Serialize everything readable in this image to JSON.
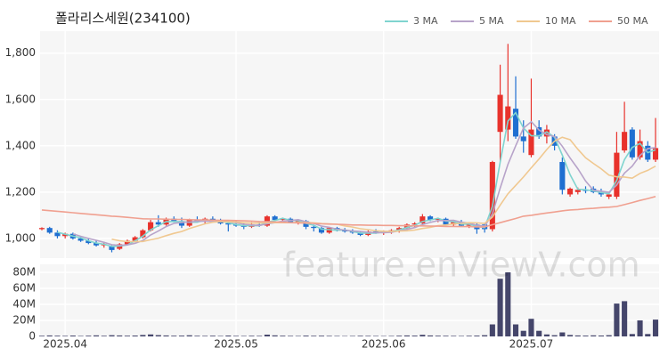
{
  "chart_data": {
    "type": "candlestick",
    "title": "폴라리스세원(234100)",
    "watermark": "feature.enViewV.com",
    "categories": [
      null,
      null,
      null,
      "2025.04",
      null,
      null,
      null,
      null,
      null,
      null,
      null,
      null,
      null,
      null,
      null,
      null,
      null,
      null,
      null,
      null,
      null,
      null,
      null,
      null,
      null,
      "2025.05",
      null,
      null,
      null,
      null,
      null,
      null,
      null,
      null,
      null,
      null,
      null,
      null,
      null,
      null,
      null,
      null,
      null,
      null,
      "2025.06",
      null,
      null,
      null,
      null,
      null,
      null,
      null,
      null,
      null,
      null,
      null,
      null,
      null,
      null,
      null,
      null,
      null,
      null,
      "2025.07",
      null,
      null,
      null,
      null,
      null,
      null,
      null,
      null,
      null,
      null,
      null,
      null,
      null,
      null,
      null,
      null
    ],
    "open": [
      1040,
      1045,
      1025,
      1010,
      1020,
      1000,
      990,
      980,
      970,
      965,
      955,
      975,
      990,
      1005,
      1035,
      1070,
      1060,
      1085,
      1075,
      1055,
      1080,
      1075,
      1085,
      1075,
      1065,
      1060,
      1055,
      1050,
      1060,
      1055,
      1095,
      1080,
      1085,
      1070,
      1075,
      1050,
      1045,
      1025,
      1045,
      1035,
      1030,
      1025,
      1015,
      1030,
      1025,
      1030,
      1035,
      1045,
      1060,
      1065,
      1095,
      1080,
      1085,
      1060,
      1070,
      1055,
      1060,
      1060,
      1040,
      1460,
      1470,
      1560,
      1440,
      1360,
      1480,
      1440,
      1440,
      1330,
      1190,
      1200,
      1210,
      1215,
      1200,
      1180,
      1180,
      1380,
      1470,
      1350,
      1400,
      1340
    ],
    "high": [
      1048,
      1050,
      1035,
      1025,
      1025,
      1010,
      1000,
      990,
      985,
      970,
      980,
      995,
      1010,
      1040,
      1080,
      1100,
      1090,
      1095,
      1090,
      1085,
      1095,
      1090,
      1095,
      1085,
      1070,
      1075,
      1065,
      1070,
      1070,
      1100,
      1100,
      1090,
      1090,
      1080,
      1080,
      1060,
      1050,
      1050,
      1050,
      1045,
      1040,
      1030,
      1035,
      1040,
      1035,
      1040,
      1050,
      1065,
      1070,
      1105,
      1100,
      1090,
      1090,
      1075,
      1080,
      1070,
      1065,
      1065,
      1335,
      1750,
      1840,
      1700,
      1510,
      1690,
      1510,
      1490,
      1450,
      1350,
      1220,
      1220,
      1225,
      1225,
      1215,
      1200,
      1460,
      1590,
      1480,
      1470,
      1420,
      1520
    ],
    "low": [
      1035,
      1020,
      1000,
      1000,
      995,
      985,
      975,
      965,
      960,
      940,
      950,
      970,
      985,
      1000,
      1030,
      1050,
      1055,
      1070,
      1045,
      1050,
      1070,
      1065,
      1070,
      1060,
      1030,
      1050,
      1040,
      1045,
      1050,
      1050,
      1075,
      1070,
      1065,
      1060,
      1040,
      1030,
      1020,
      1020,
      1030,
      1025,
      1020,
      1010,
      1010,
      1020,
      1015,
      1020,
      1025,
      1040,
      1045,
      1060,
      1075,
      1070,
      1055,
      1050,
      1050,
      1045,
      1020,
      1025,
      1030,
      1330,
      1420,
      1430,
      1370,
      1350,
      1430,
      1410,
      1380,
      1190,
      1180,
      1190,
      1195,
      1195,
      1180,
      1170,
      1170,
      1370,
      1340,
      1340,
      1330,
      1330
    ],
    "close": [
      1045,
      1025,
      1010,
      1020,
      1000,
      990,
      980,
      970,
      975,
      950,
      975,
      990,
      1005,
      1035,
      1070,
      1060,
      1085,
      1075,
      1055,
      1080,
      1075,
      1085,
      1075,
      1065,
      1060,
      1055,
      1050,
      1060,
      1055,
      1095,
      1080,
      1085,
      1070,
      1075,
      1050,
      1045,
      1025,
      1045,
      1035,
      1030,
      1025,
      1015,
      1030,
      1025,
      1030,
      1035,
      1045,
      1060,
      1065,
      1095,
      1080,
      1085,
      1060,
      1070,
      1055,
      1060,
      1040,
      1040,
      1330,
      1620,
      1570,
      1440,
      1420,
      1470,
      1440,
      1470,
      1400,
      1210,
      1215,
      1210,
      1205,
      1200,
      1190,
      1190,
      1370,
      1460,
      1350,
      1420,
      1340,
      1390
    ],
    "up_color": "#e8322c",
    "down_color": "#1f6fd1",
    "ylim": [
      915,
      1895
    ],
    "yticks": [
      {
        "value": 1000,
        "label": "1,000"
      },
      {
        "value": 1200,
        "label": "1,200"
      },
      {
        "value": 1400,
        "label": "1,400"
      },
      {
        "value": 1600,
        "label": "1,600"
      },
      {
        "value": 1800,
        "label": "1,800"
      }
    ],
    "grid": true,
    "legend": "top-right",
    "series": [
      {
        "name": "3 MA",
        "color": "#7fd4cf",
        "values": [
          null,
          null,
          1027,
          1018,
          1010,
          1003,
          990,
          980,
          975,
          965,
          967,
          972,
          990,
          1010,
          1037,
          1055,
          1072,
          1073,
          1072,
          1070,
          1070,
          1080,
          1078,
          1075,
          1067,
          1060,
          1055,
          1055,
          1055,
          1070,
          1077,
          1087,
          1078,
          1077,
          1065,
          1057,
          1040,
          1038,
          1035,
          1037,
          1030,
          1023,
          1023,
          1023,
          1028,
          1030,
          1037,
          1047,
          1057,
          1073,
          1080,
          1087,
          1075,
          1072,
          1062,
          1062,
          1052,
          1047,
          1137,
          1330,
          1507,
          1543,
          1477,
          1443,
          1443,
          1460,
          1437,
          1360,
          1275,
          1212,
          1210,
          1205,
          1198,
          1193,
          1250,
          1340,
          1393,
          1410,
          1370,
          1383
        ]
      },
      {
        "name": "5 MA",
        "color": "#b7a3c9",
        "values": [
          null,
          null,
          null,
          null,
          1020,
          1009,
          1000,
          992,
          983,
          973,
          970,
          972,
          979,
          991,
          1015,
          1032,
          1051,
          1065,
          1069,
          1071,
          1074,
          1074,
          1074,
          1076,
          1072,
          1068,
          1061,
          1058,
          1056,
          1063,
          1068,
          1075,
          1077,
          1081,
          1072,
          1065,
          1053,
          1048,
          1040,
          1036,
          1032,
          1030,
          1027,
          1025,
          1025,
          1027,
          1033,
          1039,
          1047,
          1060,
          1069,
          1077,
          1077,
          1078,
          1070,
          1066,
          1057,
          1053,
          1105,
          1218,
          1320,
          1400,
          1476,
          1504,
          1468,
          1448,
          1440,
          1398,
          1347,
          1301,
          1248,
          1208,
          1204,
          1199,
          1231,
          1282,
          1312,
          1358,
          1388,
          1392
        ]
      },
      {
        "name": "10 MA",
        "color": "#f0c890",
        "values": [
          null,
          null,
          null,
          null,
          null,
          null,
          null,
          null,
          null,
          997,
          990,
          986,
          986,
          987,
          994,
          1001,
          1012,
          1022,
          1030,
          1043,
          1053,
          1063,
          1070,
          1073,
          1072,
          1071,
          1068,
          1066,
          1066,
          1068,
          1068,
          1068,
          1068,
          1069,
          1068,
          1067,
          1064,
          1063,
          1061,
          1054,
          1049,
          1042,
          1038,
          1033,
          1031,
          1030,
          1032,
          1033,
          1036,
          1043,
          1048,
          1055,
          1058,
          1063,
          1065,
          1068,
          1067,
          1065,
          1092,
          1144,
          1193,
          1229,
          1265,
          1305,
          1343,
          1384,
          1420,
          1437,
          1426,
          1385,
          1348,
          1324,
          1301,
          1273,
          1266,
          1265,
          1260,
          1281,
          1294,
          1312
        ]
      },
      {
        "name": "50 MA",
        "color": "#f0a090",
        "values": [
          1123,
          1120,
          1117,
          1114,
          1111,
          1108,
          1105,
          1102,
          1099,
          1096,
          1094,
          1091,
          1088,
          1085,
          1084,
          1084,
          1083,
          1082,
          1082,
          1081,
          1080,
          1080,
          1079,
          1078,
          1078,
          1077,
          1076,
          1075,
          1073,
          1072,
          1071,
          1070,
          1068,
          1067,
          1066,
          1065,
          1063,
          1062,
          1061,
          1060,
          1058,
          1058,
          1057,
          1057,
          1056,
          1056,
          1055,
          1055,
          1054,
          1054,
          1053,
          1053,
          1052,
          1052,
          1051,
          1051,
          1050,
          1050,
          1059,
          1068,
          1077,
          1086,
          1096,
          1100,
          1105,
          1110,
          1114,
          1119,
          1123,
          1125,
          1128,
          1130,
          1133,
          1135,
          1138,
          1146,
          1155,
          1164,
          1172,
          1181
        ]
      }
    ],
    "volume": {
      "color": "#45466b",
      "values": [
        800000,
        1200000,
        900000,
        700000,
        1100000,
        600000,
        900000,
        1300000,
        800000,
        1500000,
        1200000,
        900000,
        1100000,
        1800000,
        2500000,
        1600000,
        1200000,
        900000,
        1000000,
        1400000,
        800000,
        700000,
        900000,
        600000,
        1100000,
        700000,
        600000,
        800000,
        700000,
        2200000,
        1300000,
        900000,
        700000,
        600000,
        1000000,
        800000,
        900000,
        700000,
        600000,
        500000,
        600000,
        800000,
        700000,
        600000,
        500000,
        600000,
        900000,
        1200000,
        1000000,
        2000000,
        1200000,
        900000,
        800000,
        700000,
        600000,
        800000,
        1000000,
        1500000,
        15000000,
        72000000,
        80000000,
        15000000,
        7000000,
        22000000,
        7000000,
        2500000,
        1500000,
        5000000,
        1800000,
        1200000,
        1000000,
        1300000,
        1100000,
        1500000,
        41000000,
        44000000,
        3000000,
        20000000,
        3000000,
        21000000
      ],
      "ylim": [
        0,
        90000000
      ],
      "yticks": [
        0,
        {
          "value": 20000000,
          "label": "20M"
        },
        {
          "value": 40000000,
          "label": "40M"
        },
        {
          "value": 60000000,
          "label": "60M"
        },
        {
          "value": 80000000,
          "label": "80M"
        }
      ]
    }
  }
}
